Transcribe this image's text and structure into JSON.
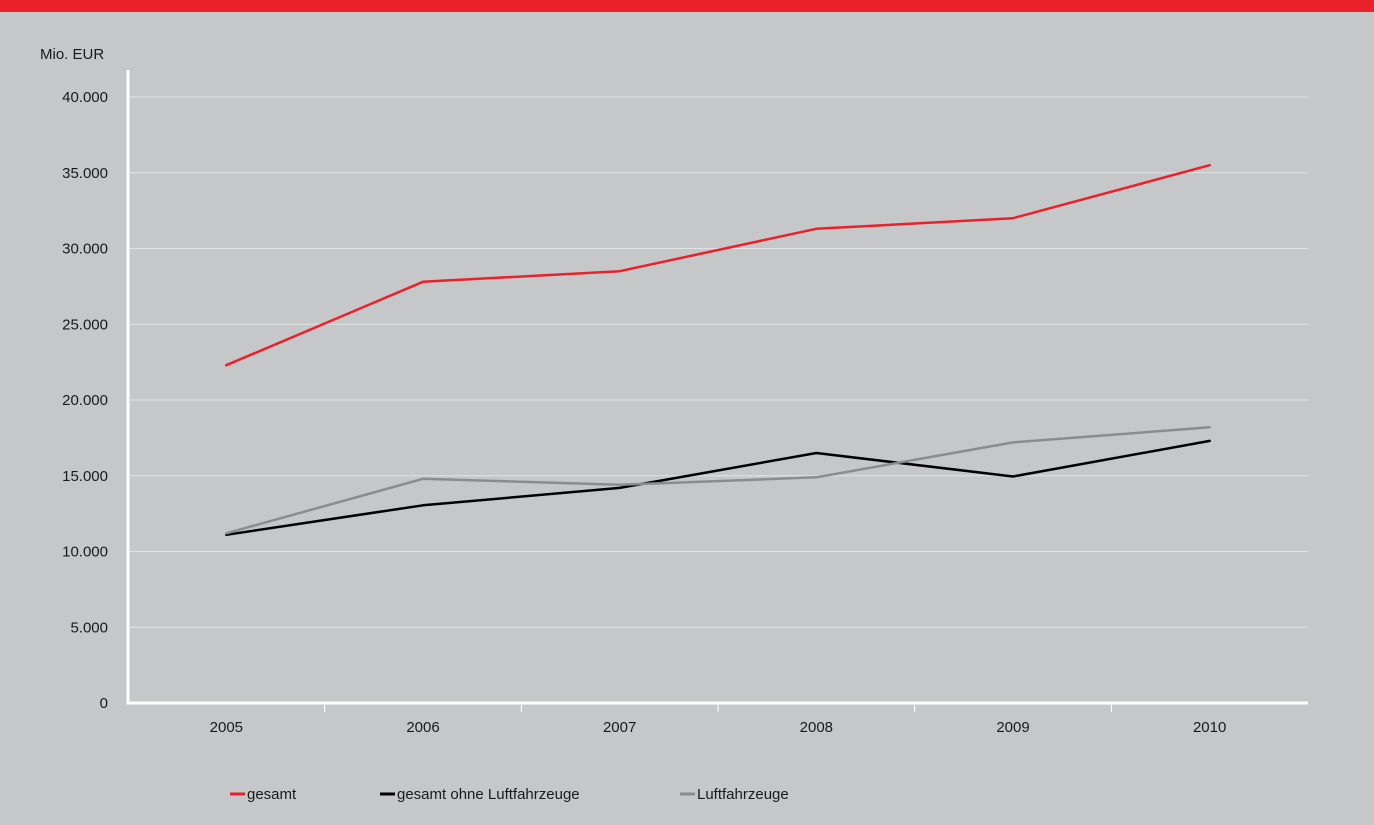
{
  "chart_data": {
    "type": "line",
    "ylabel": "Mio. EUR",
    "categories": [
      "2005",
      "2006",
      "2007",
      "2008",
      "2009",
      "2010"
    ],
    "ylim": [
      0,
      40000
    ],
    "yticks": [
      0,
      5000,
      10000,
      15000,
      20000,
      25000,
      30000,
      35000,
      40000
    ],
    "ytick_labels": [
      "0",
      "5.000",
      "10.000",
      "15.000",
      "20.000",
      "25.000",
      "30.000",
      "35.000",
      "40.000"
    ],
    "grid": true,
    "legend_position": "bottom",
    "series": [
      {
        "name": "gesamt",
        "color": "#e8212b",
        "values": [
          22300,
          27800,
          28500,
          31300,
          32000,
          35500
        ]
      },
      {
        "name": "gesamt ohne Luftfahrzeuge",
        "color": "#000000",
        "values": [
          11100,
          13050,
          14200,
          16500,
          14950,
          17300
        ]
      },
      {
        "name": "Luftfahrzeuge",
        "color": "#8c8c8c",
        "values": [
          11200,
          14800,
          14400,
          14900,
          17200,
          18200
        ]
      }
    ]
  },
  "colors": {
    "accent": "#e8212b",
    "background": "#c6c7c9",
    "grid": "#e2e3e5",
    "axis": "#ffffff"
  }
}
